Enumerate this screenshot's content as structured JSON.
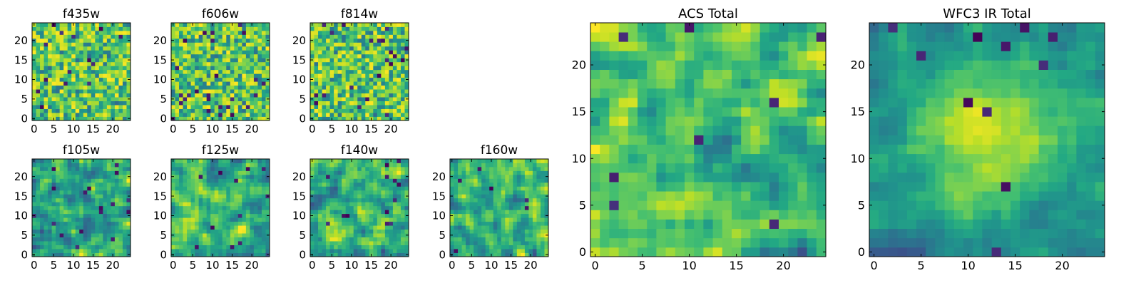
{
  "chart_data": [
    {
      "type": "heatmap",
      "title": "f435w",
      "xlabel": "",
      "ylabel": "",
      "xlim": [
        0,
        24
      ],
      "ylim": [
        0,
        24
      ],
      "xticks": [
        "0",
        "5",
        "10",
        "15",
        "20"
      ],
      "yticks": [
        "0",
        "5",
        "10",
        "15",
        "20"
      ],
      "colormap": "viridis",
      "seed": 11
    },
    {
      "type": "heatmap",
      "title": "f606w",
      "xlabel": "",
      "ylabel": "",
      "xlim": [
        0,
        24
      ],
      "ylim": [
        0,
        24
      ],
      "xticks": [
        "0",
        "5",
        "10",
        "15",
        "20"
      ],
      "yticks": [
        "0",
        "5",
        "10",
        "15",
        "20"
      ],
      "colormap": "viridis",
      "seed": 23
    },
    {
      "type": "heatmap",
      "title": "f814w",
      "xlabel": "",
      "ylabel": "",
      "xlim": [
        0,
        24
      ],
      "ylim": [
        0,
        24
      ],
      "xticks": [
        "0",
        "5",
        "10",
        "15",
        "20"
      ],
      "yticks": [
        "0",
        "5",
        "10",
        "15",
        "20"
      ],
      "colormap": "viridis",
      "seed": 37
    },
    {
      "type": "heatmap",
      "title": "f105w",
      "xlabel": "",
      "ylabel": "",
      "xlim": [
        0,
        24
      ],
      "ylim": [
        0,
        24
      ],
      "xticks": [
        "0",
        "5",
        "10",
        "15",
        "20"
      ],
      "yticks": [
        "0",
        "5",
        "10",
        "15",
        "20"
      ],
      "colormap": "viridis",
      "seed": 41
    },
    {
      "type": "heatmap",
      "title": "f125w",
      "xlabel": "",
      "ylabel": "",
      "xlim": [
        0,
        24
      ],
      "ylim": [
        0,
        24
      ],
      "xticks": [
        "0",
        "5",
        "10",
        "15",
        "20"
      ],
      "yticks": [
        "0",
        "5",
        "10",
        "15",
        "20"
      ],
      "colormap": "viridis",
      "seed": 53
    },
    {
      "type": "heatmap",
      "title": "f140w",
      "xlabel": "",
      "ylabel": "",
      "xlim": [
        0,
        24
      ],
      "ylim": [
        0,
        24
      ],
      "xticks": [
        "0",
        "5",
        "10",
        "15",
        "20"
      ],
      "yticks": [
        "0",
        "5",
        "10",
        "15",
        "20"
      ],
      "colormap": "viridis",
      "seed": 67
    },
    {
      "type": "heatmap",
      "title": "f160w",
      "xlabel": "",
      "ylabel": "",
      "xlim": [
        0,
        24
      ],
      "ylim": [
        0,
        24
      ],
      "xticks": [
        "0",
        "5",
        "10",
        "15",
        "20"
      ],
      "yticks": [
        "0",
        "5",
        "10",
        "15",
        "20"
      ],
      "colormap": "viridis",
      "seed": 79
    },
    {
      "type": "heatmap",
      "title": "ACS Total",
      "xlabel": "",
      "ylabel": "",
      "xlim": [
        0,
        24
      ],
      "ylim": [
        0,
        24
      ],
      "xticks": [
        "0",
        "5",
        "10",
        "15",
        "20"
      ],
      "yticks": [
        "0",
        "5",
        "10",
        "15",
        "20"
      ],
      "colormap": "viridis",
      "seed": 83
    },
    {
      "type": "heatmap",
      "title": "WFC3 IR Total",
      "xlabel": "",
      "ylabel": "",
      "xlim": [
        0,
        24
      ],
      "ylim": [
        0,
        24
      ],
      "xticks": [
        "0",
        "5",
        "10",
        "15",
        "20"
      ],
      "yticks": [
        "0",
        "5",
        "10",
        "15",
        "20"
      ],
      "colormap": "viridis",
      "seed": 97,
      "peak": [
        12,
        13
      ]
    }
  ]
}
